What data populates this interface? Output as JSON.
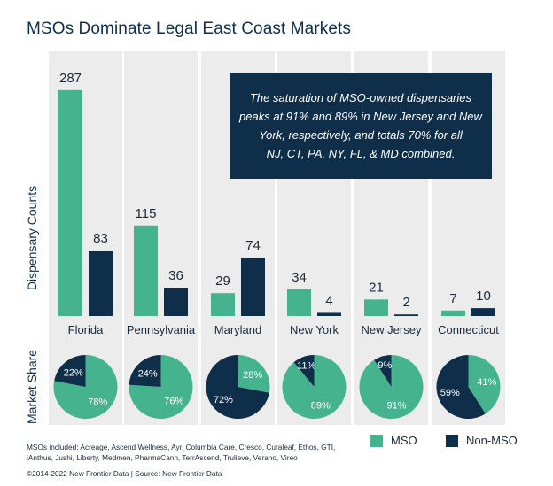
{
  "title": "MSOs Dominate Legal East Coast Markets",
  "annotation": "The saturation of MSO-owned dispensaries peaks at 91% and 89% in New Jersey and New York, respectively, and totals 70% for all NJ, CT, PA, NY, FL, & MD combined.",
  "colors": {
    "mso": "#46b38f",
    "non_mso": "#0f2e4a",
    "panel": "#ececec",
    "annotation_bg": "#0f2e4a"
  },
  "chart_data": [
    {
      "type": "bar",
      "ylabel": "Dispensary Counts",
      "categories": [
        "Florida",
        "Pennsylvania",
        "Maryland",
        "New York",
        "New Jersey",
        "Connecticut"
      ],
      "series": [
        {
          "name": "MSO",
          "values": [
            287,
            115,
            29,
            34,
            21,
            7
          ]
        },
        {
          "name": "Non-MSO",
          "values": [
            83,
            36,
            74,
            4,
            2,
            10
          ]
        }
      ]
    },
    {
      "type": "pie",
      "ylabel": "Market Share",
      "categories": [
        "Florida",
        "Pennsylvania",
        "Maryland",
        "New York",
        "New Jersey",
        "Connecticut"
      ],
      "series": [
        {
          "name": "MSO",
          "values": [
            78,
            76,
            28,
            89,
            91,
            41
          ]
        },
        {
          "name": "Non-MSO",
          "values": [
            22,
            24,
            72,
            11,
            9,
            59
          ]
        }
      ]
    }
  ],
  "legend": {
    "mso": "MSO",
    "non_mso": "Non-MSO"
  },
  "footer": {
    "note": "MSOs included: Acreage, Ascend Wellness, Ayr, Columbia Care, Cresco, Curaleaf, Ethos, GTI, iAnthus, Jushi, Liberty, Medmen, PharmaCann, TerrAscend, Trulieve, Verano, Vireo",
    "copyright": "©2014-2022 New Frontier Data | Source: New Frontier Data"
  }
}
